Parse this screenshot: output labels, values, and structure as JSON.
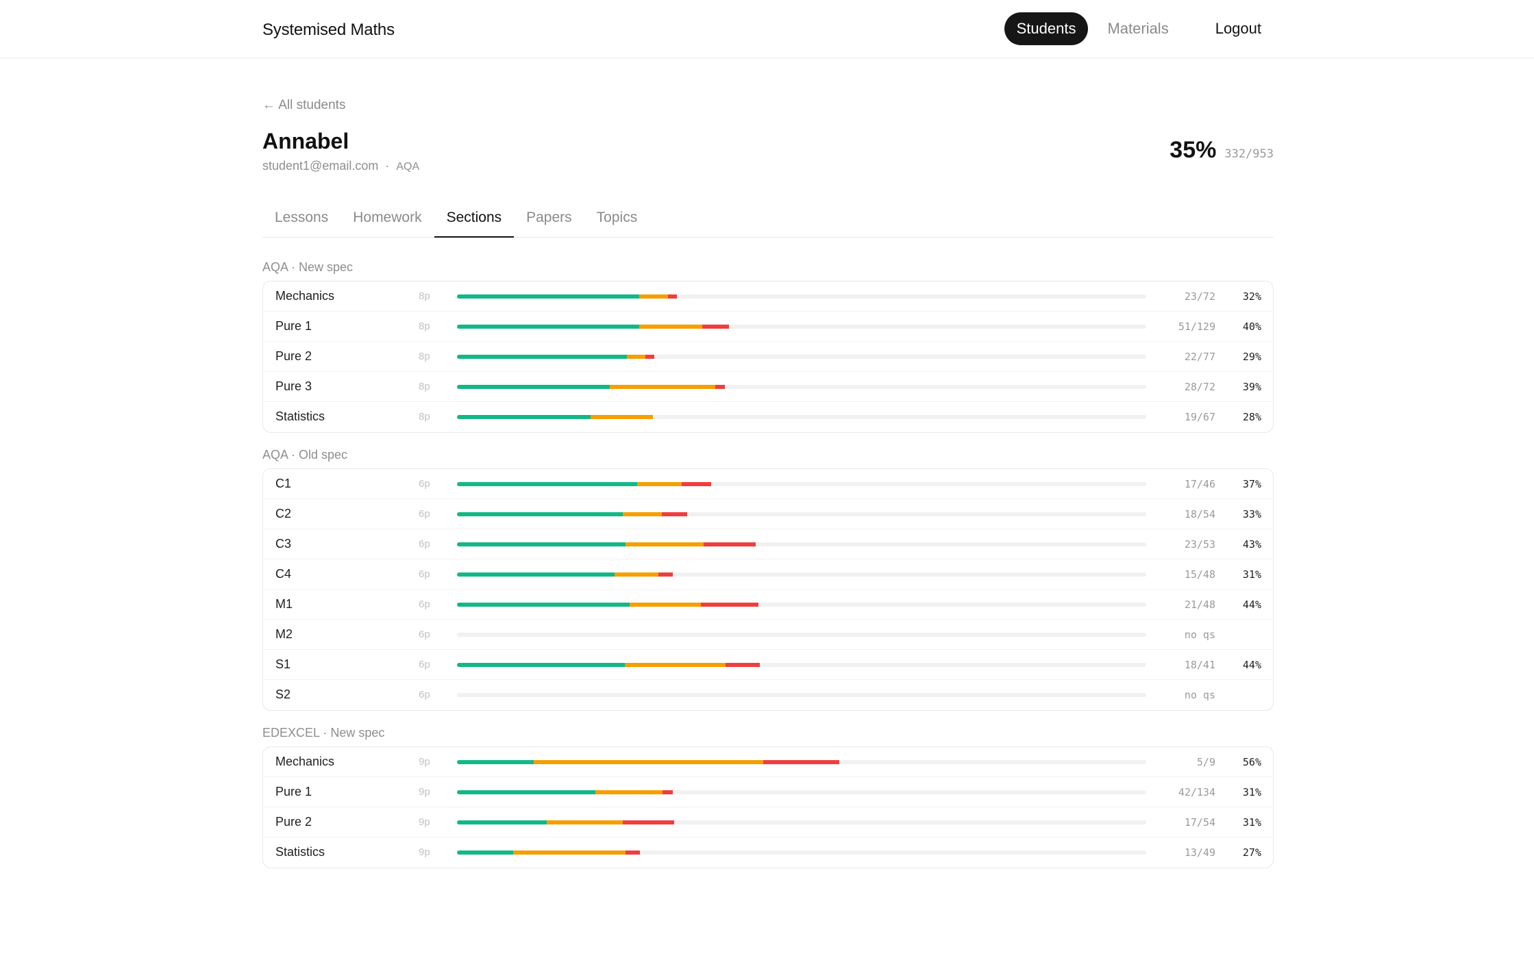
{
  "header": {
    "brand": "Systemised Maths",
    "nav": [
      {
        "label": "Students",
        "active": true
      },
      {
        "label": "Materials",
        "active": false
      },
      {
        "label": "Logout",
        "active": false
      }
    ]
  },
  "back_link": "← All students",
  "student": {
    "name": "Annabel",
    "email": "student1@email.com",
    "separator": "·",
    "board": "AQA"
  },
  "overall": {
    "percent": "35%",
    "fraction": "332/953"
  },
  "tabs": [
    {
      "label": "Lessons",
      "active": false
    },
    {
      "label": "Homework",
      "active": false
    },
    {
      "label": "Sections",
      "active": true
    },
    {
      "label": "Papers",
      "active": false
    },
    {
      "label": "Topics",
      "active": false
    }
  ],
  "colors": {
    "green": "#12b886",
    "orange": "#f59f00",
    "red": "#f03e3e",
    "track": "#f1f1f1"
  },
  "groups": [
    {
      "title": "AQA · New spec",
      "rows": [
        {
          "label": "Mechanics",
          "count": "8p",
          "green": 0.264,
          "orange": 0.042,
          "red": 0.013,
          "fraction": "23/72",
          "percent": "32%"
        },
        {
          "label": "Pure 1",
          "count": "8p",
          "green": 0.264,
          "orange": 0.092,
          "red": 0.039,
          "fraction": "51/129",
          "percent": "40%"
        },
        {
          "label": "Pure 2",
          "count": "8p",
          "green": 0.247,
          "orange": 0.026,
          "red": 0.013,
          "fraction": "22/77",
          "percent": "29%"
        },
        {
          "label": "Pure 3",
          "count": "8p",
          "green": 0.222,
          "orange": 0.153,
          "red": 0.014,
          "fraction": "28/72",
          "percent": "39%"
        },
        {
          "label": "Statistics",
          "count": "8p",
          "green": 0.194,
          "orange": 0.09,
          "red": 0.0,
          "fraction": "19/67",
          "percent": "28%"
        }
      ]
    },
    {
      "title": "AQA · Old spec",
      "rows": [
        {
          "label": "C1",
          "count": "6p",
          "green": 0.261,
          "orange": 0.065,
          "red": 0.043,
          "fraction": "17/46",
          "percent": "37%"
        },
        {
          "label": "C2",
          "count": "6p",
          "green": 0.241,
          "orange": 0.056,
          "red": 0.037,
          "fraction": "18/54",
          "percent": "33%"
        },
        {
          "label": "C3",
          "count": "6p",
          "green": 0.245,
          "orange": 0.113,
          "red": 0.075,
          "fraction": "23/53",
          "percent": "43%"
        },
        {
          "label": "C4",
          "count": "6p",
          "green": 0.229,
          "orange": 0.063,
          "red": 0.021,
          "fraction": "15/48",
          "percent": "31%"
        },
        {
          "label": "M1",
          "count": "6p",
          "green": 0.25,
          "orange": 0.104,
          "red": 0.083,
          "fraction": "21/48",
          "percent": "44%"
        },
        {
          "label": "M2",
          "count": "6p",
          "green": 0.0,
          "orange": 0.0,
          "red": 0.0,
          "fraction": "no qs",
          "percent": ""
        },
        {
          "label": "S1",
          "count": "6p",
          "green": 0.244,
          "orange": 0.146,
          "red": 0.049,
          "fraction": "18/41",
          "percent": "44%"
        },
        {
          "label": "S2",
          "count": "6p",
          "green": 0.0,
          "orange": 0.0,
          "red": 0.0,
          "fraction": "no qs",
          "percent": ""
        }
      ]
    },
    {
      "title": "EDEXCEL · New spec",
      "rows": [
        {
          "label": "Mechanics",
          "count": "9p",
          "green": 0.111,
          "orange": 0.333,
          "red": 0.111,
          "fraction": "5/9",
          "percent": "56%"
        },
        {
          "label": "Pure 1",
          "count": "9p",
          "green": 0.201,
          "orange": 0.097,
          "red": 0.015,
          "fraction": "42/134",
          "percent": "31%"
        },
        {
          "label": "Pure 2",
          "count": "9p",
          "green": 0.13,
          "orange": 0.111,
          "red": 0.074,
          "fraction": "17/54",
          "percent": "31%"
        },
        {
          "label": "Statistics",
          "count": "9p",
          "green": 0.082,
          "orange": 0.163,
          "red": 0.02,
          "fraction": "13/49",
          "percent": "27%"
        }
      ]
    }
  ]
}
